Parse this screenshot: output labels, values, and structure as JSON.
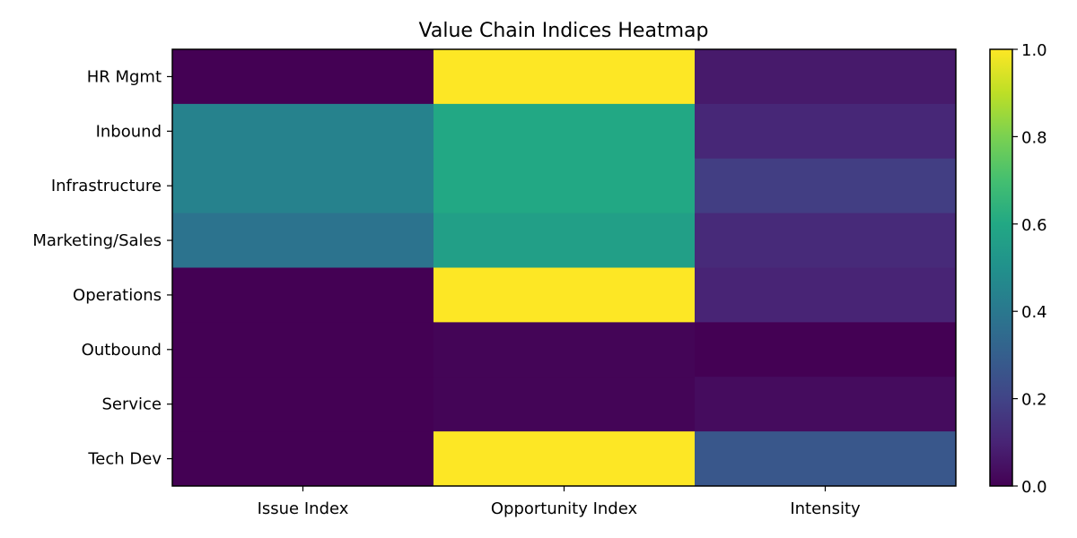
{
  "chart_data": {
    "type": "heatmap",
    "title": "Value Chain Indices Heatmap",
    "xlabel": "",
    "ylabel": "",
    "columns": [
      "Issue Index",
      "Opportunity Index",
      "Intensity"
    ],
    "rows": [
      "HR Mgmt",
      "Inbound",
      "Infrastructure",
      "Marketing/Sales",
      "Operations",
      "Outbound",
      "Service",
      "Tech Dev"
    ],
    "values": [
      [
        0.0,
        1.0,
        0.07
      ],
      [
        0.44,
        0.6,
        0.11
      ],
      [
        0.44,
        0.6,
        0.18
      ],
      [
        0.38,
        0.56,
        0.12
      ],
      [
        0.0,
        1.0,
        0.1
      ],
      [
        0.0,
        0.01,
        0.0
      ],
      [
        0.0,
        0.01,
        0.03
      ],
      [
        0.0,
        1.0,
        0.27
      ]
    ],
    "colorbar": {
      "range": [
        0.0,
        1.0
      ],
      "ticks": [
        "0.0",
        "0.2",
        "0.4",
        "0.6",
        "0.8",
        "1.0"
      ],
      "tick_values": [
        0.0,
        0.2,
        0.4,
        0.6,
        0.8,
        1.0
      ],
      "colormap": "viridis"
    },
    "grid": false
  }
}
